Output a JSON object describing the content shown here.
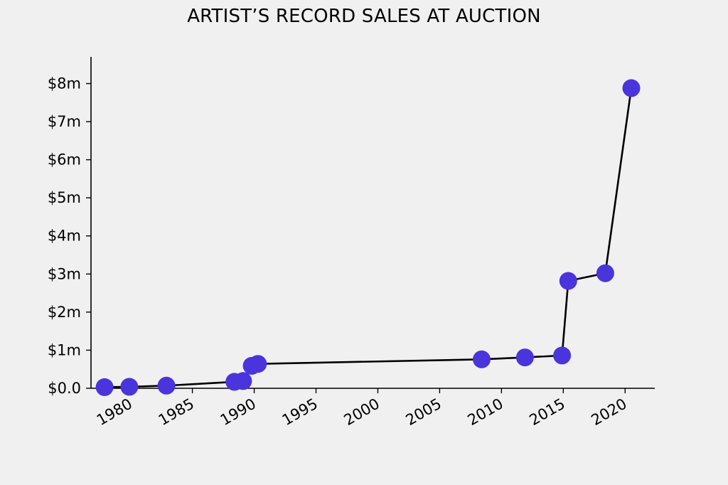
{
  "chart_data": {
    "type": "line",
    "title": "ARTIST’S RECORD SALES AT AUCTION",
    "xlabel": "",
    "ylabel": "",
    "xlim": [
      1976.8,
      1922.4
    ],
    "ylim": [
      0,
      8.7
    ],
    "x_ticks": [
      1980,
      1985,
      1990,
      1995,
      2000,
      2005,
      2010,
      2015,
      2020
    ],
    "x_tick_labels": [
      "1980",
      "1985",
      "1990",
      "1995",
      "2000",
      "2005",
      "2010",
      "2015",
      "2020"
    ],
    "y_ticks": [
      0,
      1,
      2,
      3,
      4,
      5,
      6,
      7,
      8
    ],
    "y_tick_labels": [
      "$0.0",
      "$1m",
      "$2m",
      "$3m",
      "$4m",
      "$5m",
      "$6m",
      "$7m",
      "$8m"
    ],
    "grid": false,
    "legend": "none",
    "series": [
      {
        "x": [
          1977.9,
          1979.9,
          1982.9,
          1988.4,
          1989.1,
          1989.8,
          1990.3,
          2008.4,
          2011.9,
          2014.9,
          2015.4,
          2018.4,
          2020.5
        ],
        "y": [
          0.03,
          0.04,
          0.07,
          0.17,
          0.19,
          0.59,
          0.64,
          0.76,
          0.81,
          0.86,
          2.82,
          3.02,
          7.88
        ]
      }
    ],
    "colors": {
      "line": "#000000",
      "marker": "#4a34dc",
      "background": "#f0f0f0"
    }
  }
}
